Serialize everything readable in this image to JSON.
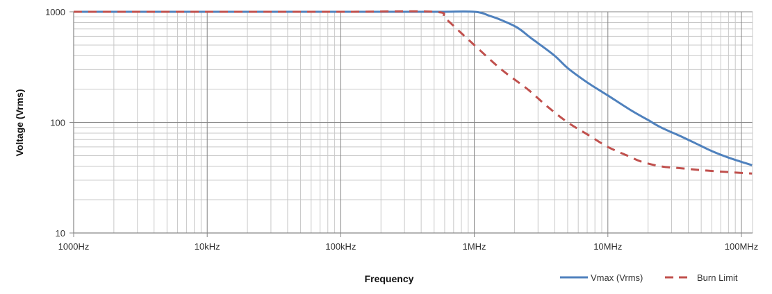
{
  "chart_data": {
    "type": "line",
    "title": "",
    "xlabel": "Frequency",
    "ylabel": "Voltage (Vrms)",
    "x_scale": "log",
    "y_scale": "log",
    "xlim": [
      1000,
      120000000
    ],
    "ylim": [
      10,
      1000
    ],
    "grid": true,
    "legend_position": "bottom-right",
    "x_ticks": [
      {
        "value": 1000,
        "label": "1000Hz"
      },
      {
        "value": 10000,
        "label": "10kHz"
      },
      {
        "value": 100000,
        "label": "100kHz"
      },
      {
        "value": 1000000,
        "label": "1MHz"
      },
      {
        "value": 10000000,
        "label": "10MHz"
      },
      {
        "value": 100000000,
        "label": "100MHz"
      }
    ],
    "y_ticks": [
      {
        "value": 10,
        "label": "10"
      },
      {
        "value": 100,
        "label": "100"
      },
      {
        "value": 1000,
        "label": "1000"
      }
    ],
    "series": [
      {
        "name": "Vmax (Vrms)",
        "color": "#4f81bd",
        "style": "solid",
        "points": [
          [
            1000,
            1000
          ],
          [
            10000,
            1000
          ],
          [
            100000,
            1000
          ],
          [
            500000,
            1000
          ],
          [
            1000000,
            1000
          ],
          [
            1300000,
            920
          ],
          [
            1600000,
            840
          ],
          [
            2100000,
            720
          ],
          [
            2600000,
            590
          ],
          [
            3000000,
            520
          ],
          [
            4000000,
            400
          ],
          [
            5000000,
            310
          ],
          [
            7000000,
            230
          ],
          [
            10000000,
            175
          ],
          [
            15000000,
            128
          ],
          [
            20000000,
            105
          ],
          [
            25000000,
            90
          ],
          [
            35000000,
            75
          ],
          [
            45000000,
            65
          ],
          [
            60000000,
            55
          ],
          [
            80000000,
            48
          ],
          [
            100000000,
            44
          ],
          [
            120000000,
            41
          ]
        ]
      },
      {
        "name": "Burn Limit",
        "color": "#c0504d",
        "style": "dashed",
        "points": [
          [
            1000,
            1000
          ],
          [
            10000,
            1000
          ],
          [
            100000,
            1000
          ],
          [
            500000,
            1000
          ],
          [
            600000,
            880
          ],
          [
            800000,
            640
          ],
          [
            1000000,
            500
          ],
          [
            1600000,
            300
          ],
          [
            2500000,
            200
          ],
          [
            3500000,
            140
          ],
          [
            5000000,
            100
          ],
          [
            7000000,
            78
          ],
          [
            10000000,
            60
          ],
          [
            14000000,
            50
          ],
          [
            18000000,
            44
          ],
          [
            25000000,
            40
          ],
          [
            35000000,
            38.5
          ],
          [
            50000000,
            37
          ],
          [
            80000000,
            35.5
          ],
          [
            120000000,
            34.5
          ]
        ]
      }
    ]
  },
  "legend": {
    "items": [
      {
        "label": "Vmax (Vrms)",
        "color": "#4f81bd",
        "style": "solid"
      },
      {
        "label": "Burn Limit",
        "color": "#c0504d",
        "style": "dashed"
      }
    ]
  },
  "colors": {
    "grid_major": "#868686",
    "grid_minor": "#c8c8c8",
    "axis": "#868686"
  }
}
